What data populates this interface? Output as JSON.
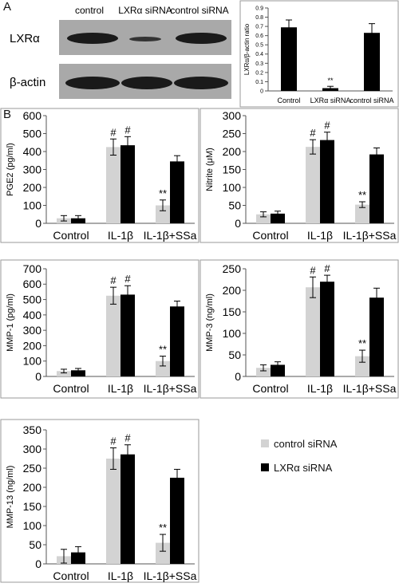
{
  "panel_labels": {
    "a": "A",
    "b": "B"
  },
  "colors": {
    "control_sirna": "#d3d3d3",
    "lxr_sirna": "#000000",
    "blot_bg": "#a9a9a9",
    "band": "#1a1a1a"
  },
  "blot": {
    "lanes": [
      "control",
      "LXRα siRNA",
      "control siRNA"
    ],
    "rows": [
      "LXRα",
      "β-actin"
    ]
  },
  "legend": {
    "items": [
      {
        "label": "control siRNA",
        "color": "#d3d3d3"
      },
      {
        "label": "LXRα siRNA",
        "color": "#000000"
      }
    ]
  },
  "chart_data": [
    {
      "id": "ratio",
      "type": "bar",
      "ylabel": "LXRα/β-actin ratio",
      "ylim": [
        0,
        0.9
      ],
      "yticks": [
        0,
        0.1,
        0.2,
        0.3,
        0.4,
        0.5,
        0.6,
        0.7,
        0.8,
        0.9
      ],
      "ytick_labels": [
        "0",
        "0.1",
        "0.2",
        "0.3",
        "0.4",
        "0.5",
        "0.6",
        "0.7",
        "0.8",
        "0.9"
      ],
      "categories": [
        "Control",
        "LXRα siRNA",
        "control siRNA"
      ],
      "series": [
        {
          "values": [
            0.69,
            0.03,
            0.63
          ],
          "errors": [
            0.08,
            0.02,
            0.1
          ],
          "color": "#000000"
        }
      ],
      "annotations": [
        {
          "text": "**",
          "category": 1
        }
      ]
    },
    {
      "id": "pge2",
      "type": "bar",
      "ylabel": "PGE2 (pg/ml)",
      "ylim": [
        0,
        600
      ],
      "yticks": [
        0,
        100,
        200,
        300,
        400,
        500,
        600
      ],
      "ytick_labels": [
        "0",
        "100",
        "200",
        "300",
        "400",
        "500",
        "600"
      ],
      "categories": [
        "Control",
        "IL-1β",
        "IL-1β+SSa"
      ],
      "series": [
        {
          "name": "control siRNA",
          "values": [
            28,
            425,
            100
          ],
          "errors": [
            15,
            45,
            30
          ],
          "color": "#d3d3d3"
        },
        {
          "name": "LXRα siRNA",
          "values": [
            28,
            435,
            345
          ],
          "errors": [
            15,
            48,
            32
          ],
          "color": "#000000"
        }
      ],
      "annotations": [
        {
          "text": "#",
          "category": 1,
          "series": 0
        },
        {
          "text": "#",
          "category": 1,
          "series": 1
        },
        {
          "text": "**",
          "category": 2,
          "series": 0
        }
      ]
    },
    {
      "id": "nitrite",
      "type": "bar",
      "ylabel": "Nitrite (μM)",
      "ylim": [
        0,
        300
      ],
      "yticks": [
        0,
        50,
        100,
        150,
        200,
        250,
        300
      ],
      "ytick_labels": [
        "0",
        "50",
        "100",
        "150",
        "200",
        "250",
        "300"
      ],
      "categories": [
        "Control",
        "IL-1β",
        "IL-1β+SSa"
      ],
      "series": [
        {
          "name": "control siRNA",
          "values": [
            25,
            213,
            52
          ],
          "errors": [
            7,
            20,
            8
          ],
          "color": "#d3d3d3"
        },
        {
          "name": "LXRα siRNA",
          "values": [
            27,
            232,
            192
          ],
          "errors": [
            7,
            22,
            18
          ],
          "color": "#000000"
        }
      ],
      "annotations": [
        {
          "text": "#",
          "category": 1,
          "series": 0
        },
        {
          "text": "#",
          "category": 1,
          "series": 1
        },
        {
          "text": "**",
          "category": 2,
          "series": 0
        }
      ]
    },
    {
      "id": "mmp1",
      "type": "bar",
      "ylabel": "MMP-1 (pg/ml)",
      "ylim": [
        0,
        700
      ],
      "yticks": [
        0,
        100,
        200,
        300,
        400,
        500,
        600,
        700
      ],
      "ytick_labels": [
        "0",
        "100",
        "200",
        "300",
        "400",
        "500",
        "600",
        "700"
      ],
      "categories": [
        "Control",
        "IL-1β",
        "IL-1β+SSa"
      ],
      "series": [
        {
          "name": "control siRNA",
          "values": [
            35,
            525,
            100
          ],
          "errors": [
            12,
            55,
            32
          ],
          "color": "#d3d3d3"
        },
        {
          "name": "LXRα siRNA",
          "values": [
            40,
            532,
            455
          ],
          "errors": [
            12,
            58,
            35
          ],
          "color": "#000000"
        }
      ],
      "annotations": [
        {
          "text": "#",
          "category": 1,
          "series": 0
        },
        {
          "text": "#",
          "category": 1,
          "series": 1
        },
        {
          "text": "**",
          "category": 2,
          "series": 0
        }
      ]
    },
    {
      "id": "mmp3",
      "type": "bar",
      "ylabel": "MMP-3 (ng/ml)",
      "ylim": [
        0,
        250
      ],
      "yticks": [
        0,
        50,
        100,
        150,
        200,
        250
      ],
      "ytick_labels": [
        "0",
        "50",
        "100",
        "150",
        "200",
        "250"
      ],
      "categories": [
        "Control",
        "IL-1β",
        "IL-1β+SSa"
      ],
      "series": [
        {
          "name": "control siRNA",
          "values": [
            20,
            207,
            47
          ],
          "errors": [
            7,
            24,
            14
          ],
          "color": "#d3d3d3"
        },
        {
          "name": "LXRα siRNA",
          "values": [
            27,
            220,
            183
          ],
          "errors": [
            7,
            15,
            22
          ],
          "color": "#000000"
        }
      ],
      "annotations": [
        {
          "text": "#",
          "category": 1,
          "series": 0
        },
        {
          "text": "#",
          "category": 1,
          "series": 1
        },
        {
          "text": "**",
          "category": 2,
          "series": 0
        }
      ]
    },
    {
      "id": "mmp13",
      "type": "bar",
      "ylabel": "MMP-13 (ng/ml)",
      "ylim": [
        0,
        350
      ],
      "yticks": [
        0,
        50,
        100,
        150,
        200,
        250,
        300,
        350
      ],
      "ytick_labels": [
        "0",
        "50",
        "100",
        "150",
        "200",
        "250",
        "300",
        "350"
      ],
      "categories": [
        "Control",
        "IL-1β",
        "IL-1β+SSa"
      ],
      "series": [
        {
          "name": "control siRNA",
          "values": [
            20,
            275,
            55
          ],
          "errors": [
            18,
            28,
            22
          ],
          "color": "#d3d3d3"
        },
        {
          "name": "LXRα siRNA",
          "values": [
            30,
            286,
            225
          ],
          "errors": [
            15,
            25,
            22
          ],
          "color": "#000000"
        }
      ],
      "annotations": [
        {
          "text": "#",
          "category": 1,
          "series": 0
        },
        {
          "text": "#",
          "category": 1,
          "series": 1
        },
        {
          "text": "**",
          "category": 2,
          "series": 0
        }
      ]
    }
  ]
}
